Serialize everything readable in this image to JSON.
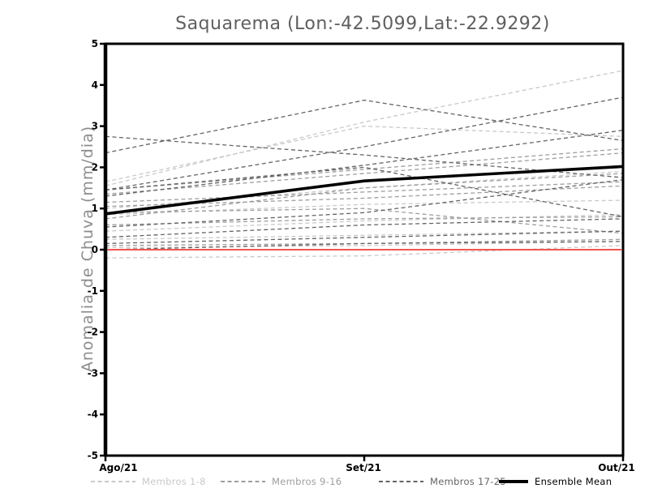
{
  "title": "Saquarema (Lon:-42.5099,Lat:-22.9292)",
  "chart_data": {
    "type": "line",
    "title": "Saquarema (Lon:-42.5099,Lat:-22.9292)",
    "xlabel": "",
    "ylabel": "Anomalia de Chuva (mm/dia)",
    "x": [
      "Ago/21",
      "Set/21",
      "Out/21"
    ],
    "ylim": [
      -5,
      5
    ],
    "yticks": [
      5,
      4,
      3,
      2,
      1,
      0,
      -1,
      -2,
      -3,
      -4,
      -5
    ],
    "grid": false,
    "legend_position": "bottom",
    "zero_line": {
      "y": 0,
      "color": "#f2564e"
    },
    "groups": [
      {
        "name": "Membros 1-8",
        "color": "#c9c9c9",
        "line_style": "dashed",
        "members": [
          [
            1.65,
            3.0,
            2.75
          ],
          [
            1.55,
            3.1,
            4.35
          ],
          [
            1.0,
            1.5,
            1.9
          ],
          [
            0.85,
            1.1,
            1.2
          ],
          [
            0.45,
            0.7,
            0.85
          ],
          [
            0.25,
            0.35,
            0.45
          ],
          [
            0.05,
            0.1,
            0.2
          ],
          [
            -0.2,
            -0.15,
            0.1
          ]
        ]
      },
      {
        "name": "Membros 9-16",
        "color": "#9e9e9e",
        "line_style": "dashed",
        "members": [
          [
            1.45,
            1.95,
            2.45
          ],
          [
            1.35,
            1.85,
            2.35
          ],
          [
            1.15,
            1.4,
            1.65
          ],
          [
            1.05,
            1.25,
            1.55
          ],
          [
            0.75,
            1.5,
            1.85
          ],
          [
            0.9,
            1.0,
            0.4
          ],
          [
            0.6,
            0.75,
            0.8
          ],
          [
            0.1,
            0.15,
            0.25
          ]
        ]
      },
      {
        "name": "Membros 17-25",
        "color": "#646464",
        "line_style": "dashed",
        "members": [
          [
            2.35,
            3.63,
            2.65
          ],
          [
            2.75,
            2.3,
            1.75
          ],
          [
            1.45,
            2.5,
            3.7
          ],
          [
            1.3,
            2.05,
            2.9
          ],
          [
            1.45,
            2.0,
            0.8
          ],
          [
            0.55,
            0.9,
            1.7
          ],
          [
            0.3,
            0.6,
            0.75
          ],
          [
            0.15,
            0.3,
            0.45
          ],
          [
            0.0,
            0.15,
            0.2
          ]
        ]
      }
    ],
    "mean": {
      "name": "Ensemble Mean",
      "color": "#000000",
      "line_style": "solid",
      "values": [
        0.87,
        1.67,
        2.02
      ]
    }
  }
}
